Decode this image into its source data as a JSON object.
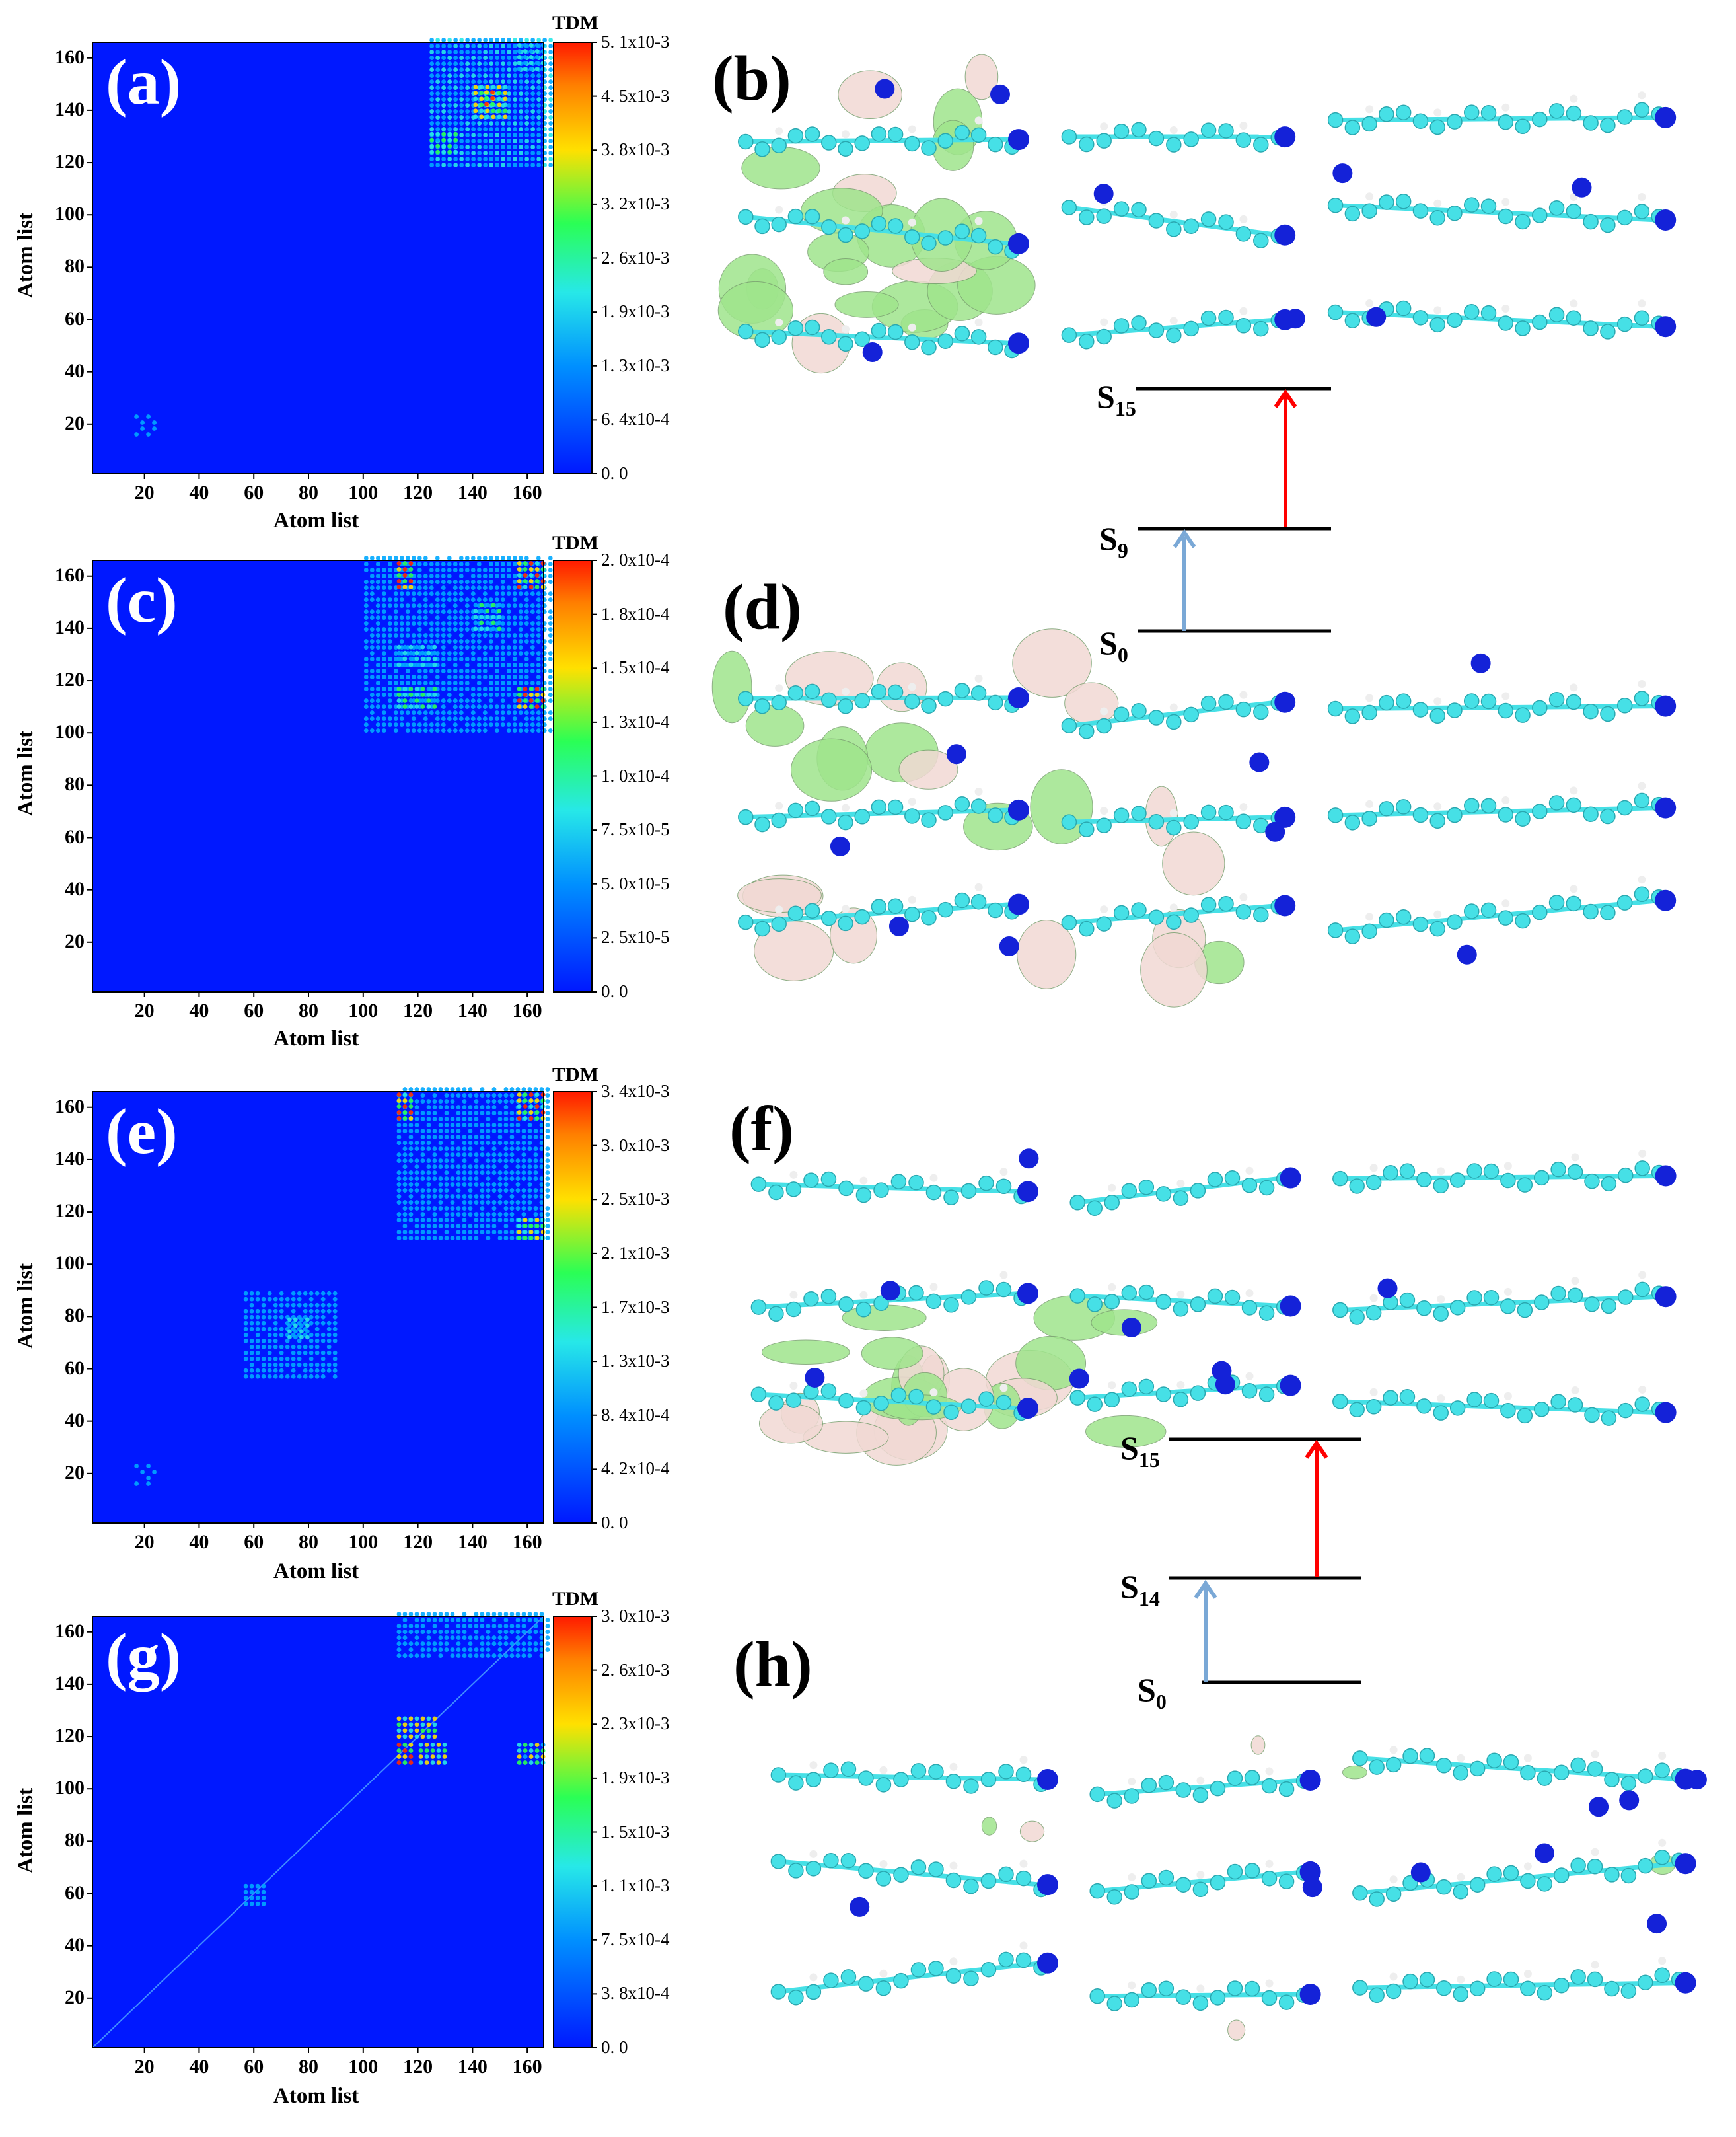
{
  "colors": {
    "map_background": "#0018ff",
    "hot": "#ff2a00",
    "warm": "#ffe000",
    "mid": "#2aff55",
    "cool": "#27d8f0",
    "level_line": "#000000",
    "arrow_blue": "#7aa8d6",
    "arrow_red": "#ff0000",
    "iso_pink": "#f1d9d4",
    "iso_green": "#9fe58c",
    "atom_cyan": "#46e0e6",
    "atom_blue": "#1422d8"
  },
  "panels": {
    "a": {
      "label": "(a)"
    },
    "b": {
      "label": "(b)"
    },
    "c": {
      "label": "(c)"
    },
    "d": {
      "label": "(d)"
    },
    "e": {
      "label": "(e)"
    },
    "f": {
      "label": "(f)"
    },
    "g": {
      "label": "(g)"
    },
    "h": {
      "label": "(h)"
    }
  },
  "energy_diagrams": {
    "top": {
      "levels": [
        {
          "name": "S",
          "sub": "15"
        },
        {
          "name": "S",
          "sub": "9"
        },
        {
          "name": "S",
          "sub": "0"
        }
      ],
      "arrows": [
        "blue",
        "red"
      ]
    },
    "bottom": {
      "levels": [
        {
          "name": "S",
          "sub": "15"
        },
        {
          "name": "S",
          "sub": "14"
        },
        {
          "name": "S",
          "sub": "0"
        }
      ],
      "arrows": [
        "blue",
        "red"
      ]
    }
  },
  "chart_data": [
    {
      "type": "heatmap",
      "panel": "(a)",
      "colorbar_title": "TDM",
      "xlabel": "Atom list",
      "ylabel": "Atom list",
      "x_ticks": [
        "20",
        "40",
        "60",
        "80",
        "100",
        "120",
        "140",
        "160"
      ],
      "y_ticks": [
        "20",
        "40",
        "60",
        "80",
        "100",
        "120",
        "140",
        "160"
      ],
      "colorbar_ticks": [
        "5. 1x10-3",
        "4. 5x10-3",
        "3. 8x10-3",
        "3. 2x10-3",
        "2. 6x10-3",
        "1. 9x10-3",
        "1. 3x10-3",
        "6. 4x10-4",
        "0. 0"
      ],
      "range": [
        1,
        166
      ],
      "hotspots": [
        {
          "x": [
            124,
            168
          ],
          "y": [
            120,
            168
          ],
          "level": 0.35
        },
        {
          "x": [
            140,
            152
          ],
          "y": [
            138,
            150
          ],
          "level": 0.8
        },
        {
          "x": [
            144,
            148
          ],
          "y": [
            142,
            148
          ],
          "level": 1.0
        },
        {
          "x": [
            124,
            134
          ],
          "y": [
            124,
            132
          ],
          "level": 0.6
        },
        {
          "x": [
            156,
            166
          ],
          "y": [
            155,
            166
          ],
          "level": 0.4
        },
        {
          "x": [
            16,
            24
          ],
          "y": [
            16,
            24
          ],
          "level": 0.15
        }
      ]
    },
    {
      "type": "heatmap",
      "panel": "(c)",
      "colorbar_title": "TDM",
      "xlabel": "Atom list",
      "ylabel": "Atom list",
      "x_ticks": [
        "20",
        "40",
        "60",
        "80",
        "100",
        "120",
        "140",
        "160"
      ],
      "y_ticks": [
        "20",
        "40",
        "60",
        "80",
        "100",
        "120",
        "140",
        "160"
      ],
      "colorbar_ticks": [
        "2. 0x10-4",
        "1. 8x10-4",
        "1. 5x10-4",
        "1. 3x10-4",
        "1. 0x10-4",
        "7. 5x10-5",
        "5. 0x10-5",
        "2. 5x10-5",
        "0. 0"
      ],
      "range": [
        1,
        166
      ],
      "hotspots": [
        {
          "x": [
            100,
            168
          ],
          "y": [
            100,
            168
          ],
          "level": 0.25
        },
        {
          "x": [
            112,
            118
          ],
          "y": [
            156,
            166
          ],
          "level": 1.0
        },
        {
          "x": [
            156,
            166
          ],
          "y": [
            156,
            166
          ],
          "level": 0.9
        },
        {
          "x": [
            156,
            166
          ],
          "y": [
            110,
            118
          ],
          "level": 1.0
        },
        {
          "x": [
            112,
            126
          ],
          "y": [
            110,
            118
          ],
          "level": 0.6
        },
        {
          "x": [
            140,
            150
          ],
          "y": [
            140,
            150
          ],
          "level": 0.5
        },
        {
          "x": [
            112,
            126
          ],
          "y": [
            126,
            134
          ],
          "level": 0.45
        }
      ]
    },
    {
      "type": "heatmap",
      "panel": "(e)",
      "colorbar_title": "TDM",
      "xlabel": "Atom list",
      "ylabel": "Atom list",
      "x_ticks": [
        "20",
        "40",
        "60",
        "80",
        "100",
        "120",
        "140",
        "160"
      ],
      "y_ticks": [
        "20",
        "40",
        "60",
        "80",
        "100",
        "120",
        "140",
        "160"
      ],
      "colorbar_ticks": [
        "3. 4x10-3",
        "3. 0x10-3",
        "2. 5x10-3",
        "2. 1x10-3",
        "1. 7x10-3",
        "1. 3x10-3",
        "8. 4x10-4",
        "4. 2x10-4",
        "0. 0"
      ],
      "range": [
        1,
        166
      ],
      "hotspots": [
        {
          "x": [
            112,
            168
          ],
          "y": [
            110,
            168
          ],
          "level": 0.25
        },
        {
          "x": [
            112,
            118
          ],
          "y": [
            156,
            166
          ],
          "level": 0.95
        },
        {
          "x": [
            156,
            166
          ],
          "y": [
            156,
            166
          ],
          "level": 0.9
        },
        {
          "x": [
            156,
            166
          ],
          "y": [
            110,
            118
          ],
          "level": 0.75
        },
        {
          "x": [
            56,
            90
          ],
          "y": [
            56,
            90
          ],
          "level": 0.25
        },
        {
          "x": [
            72,
            80
          ],
          "y": [
            72,
            80
          ],
          "level": 0.45
        },
        {
          "x": [
            16,
            24
          ],
          "y": [
            16,
            24
          ],
          "level": 0.15
        }
      ]
    },
    {
      "type": "heatmap",
      "panel": "(g)",
      "colorbar_title": "TDM",
      "xlabel": "Atom list",
      "ylabel": "Atom list",
      "x_ticks": [
        "20",
        "40",
        "60",
        "80",
        "100",
        "120",
        "140",
        "160"
      ],
      "y_ticks": [
        "20",
        "40",
        "60",
        "80",
        "100",
        "120",
        "140",
        "160"
      ],
      "colorbar_ticks": [
        "3. 0x10-3",
        "2. 6x10-3",
        "2. 3x10-3",
        "1. 9x10-3",
        "1. 5x10-3",
        "1. 1x10-3",
        "7. 5x10-4",
        "3. 8x10-4",
        "0. 0"
      ],
      "range": [
        1,
        166
      ],
      "diagonal": true,
      "hotspots": [
        {
          "x": [
            112,
            118
          ],
          "y": [
            110,
            118
          ],
          "level": 1.0
        },
        {
          "x": [
            112,
            126
          ],
          "y": [
            120,
            128
          ],
          "level": 0.75
        },
        {
          "x": [
            120,
            130
          ],
          "y": [
            110,
            118
          ],
          "level": 0.7
        },
        {
          "x": [
            156,
            166
          ],
          "y": [
            110,
            118
          ],
          "level": 0.65
        },
        {
          "x": [
            112,
            168
          ],
          "y": [
            150,
            168
          ],
          "level": 0.25
        },
        {
          "x": [
            56,
            64
          ],
          "y": [
            56,
            64
          ],
          "level": 0.3
        }
      ]
    }
  ]
}
